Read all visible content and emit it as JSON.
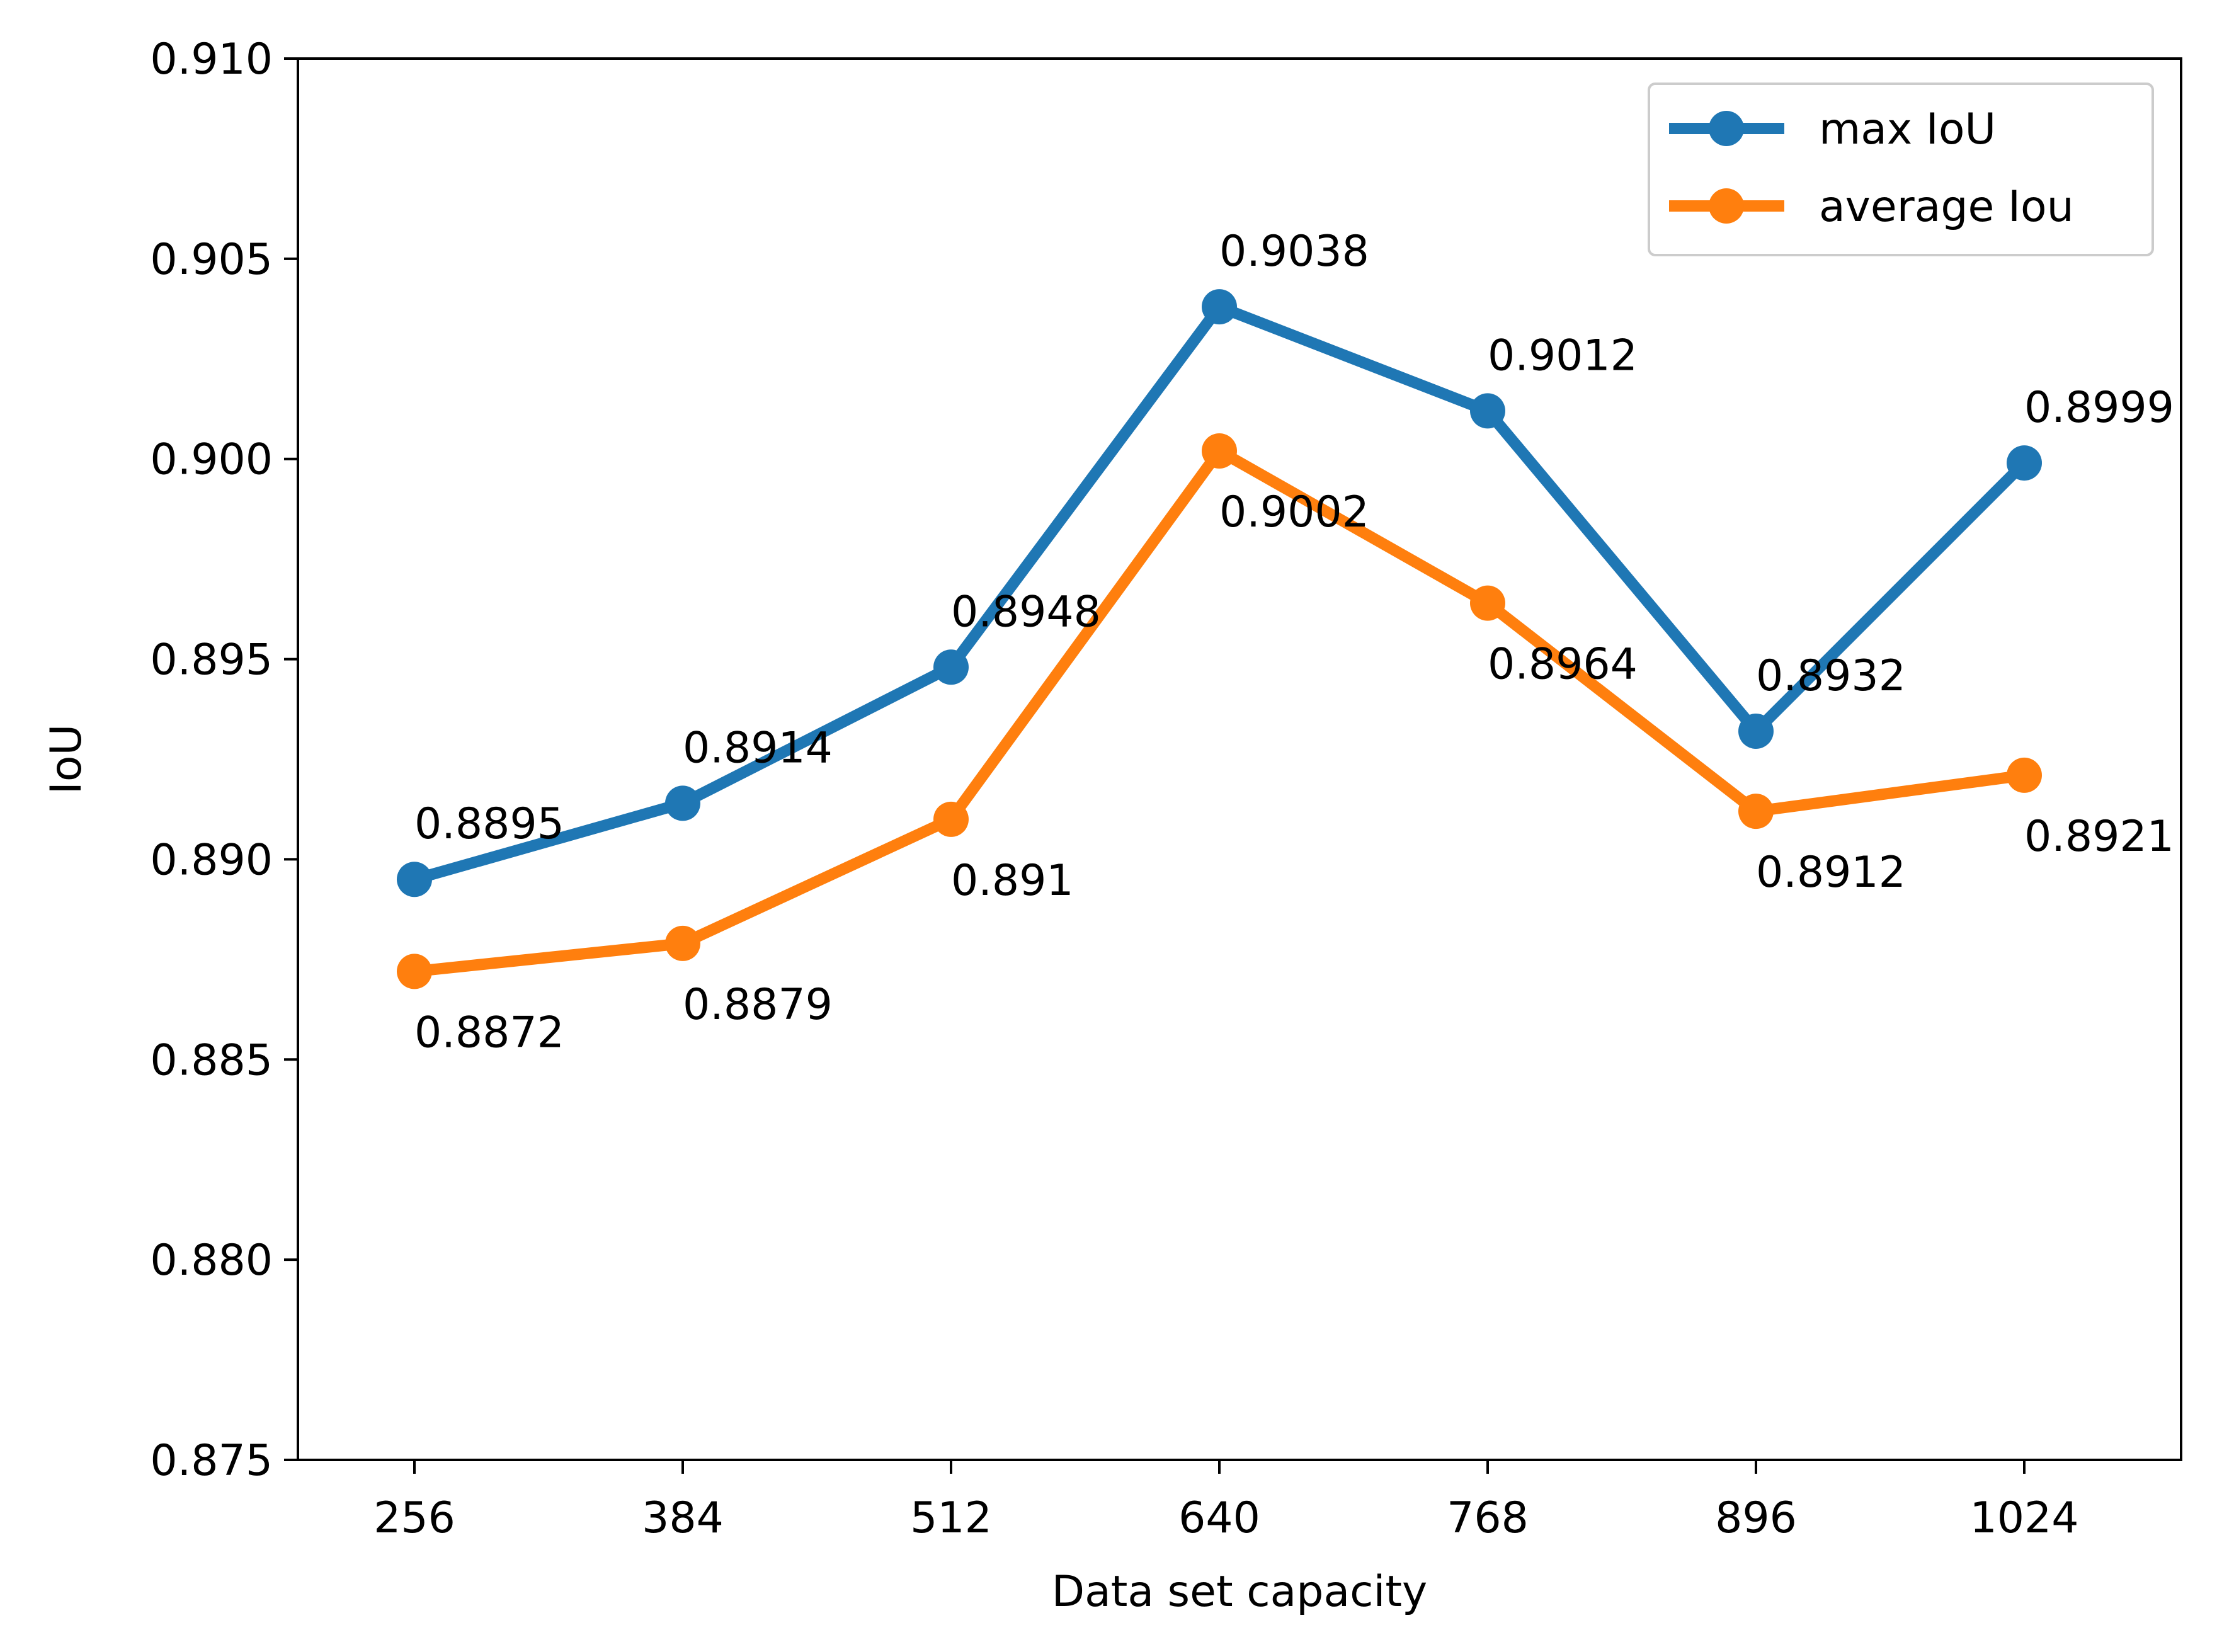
{
  "chart_data": {
    "type": "line",
    "title": "",
    "xlabel": "Data set capacity",
    "ylabel": "IoU",
    "categories": [
      "256",
      "384",
      "512",
      "640",
      "768",
      "896",
      "1024"
    ],
    "ylim": [
      0.875,
      0.91
    ],
    "yticks": [
      "0.875",
      "0.880",
      "0.885",
      "0.890",
      "0.895",
      "0.900",
      "0.905",
      "0.910"
    ],
    "grid": false,
    "legend_position": "top-right",
    "series": [
      {
        "name": "max IoU",
        "color": "#1f77b4",
        "values": [
          0.8895,
          0.8914,
          0.8948,
          0.9038,
          0.9012,
          0.8932,
          0.8999
        ],
        "labels": [
          "0.8895",
          "0.8914",
          "0.8948",
          "0.9038",
          "0.9012",
          "0.8932",
          "0.8999"
        ],
        "label_side": "above"
      },
      {
        "name": "average Iou",
        "color": "#ff7f0e",
        "values": [
          0.8872,
          0.8879,
          0.891,
          0.9002,
          0.8964,
          0.8912,
          0.8921
        ],
        "labels": [
          "0.8872",
          "0.8879",
          "0.891",
          "0.9002",
          "0.8964",
          "0.8912",
          "0.8921"
        ],
        "label_side": "below"
      }
    ]
  }
}
